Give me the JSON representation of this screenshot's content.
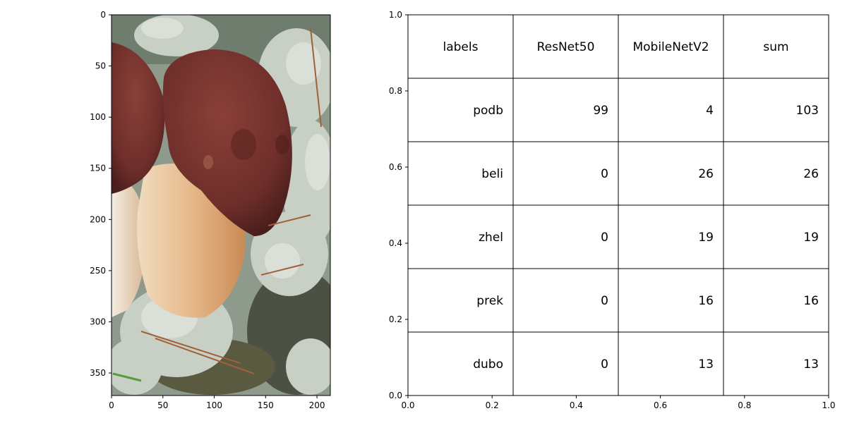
{
  "image_panel": {
    "subject": "photo of boletus mushrooms with brown caps among grey-white lichen",
    "x_ticks": [
      "0",
      "50",
      "100",
      "150",
      "200"
    ],
    "y_ticks": [
      "0",
      "50",
      "100",
      "150",
      "200",
      "250",
      "300",
      "350"
    ],
    "x_range": [
      0,
      213
    ],
    "y_range": [
      0,
      372
    ]
  },
  "chart_data": {
    "type": "table",
    "columns": [
      "labels",
      "ResNet50",
      "MobileNetV2",
      "sum"
    ],
    "rows": [
      [
        "podb",
        "99",
        "4",
        "103"
      ],
      [
        "beli",
        "0",
        "26",
        "26"
      ],
      [
        "zhel",
        "0",
        "19",
        "19"
      ],
      [
        "prek",
        "0",
        "16",
        "16"
      ],
      [
        "dubo",
        "0",
        "13",
        "13"
      ]
    ],
    "xlim": [
      0,
      1
    ],
    "ylim": [
      0,
      1
    ],
    "x_ticks": [
      "0.0",
      "0.2",
      "0.4",
      "0.6",
      "0.8",
      "1.0"
    ],
    "y_ticks": [
      "0.0",
      "0.2",
      "0.4",
      "0.6",
      "0.8",
      "1.0"
    ]
  }
}
